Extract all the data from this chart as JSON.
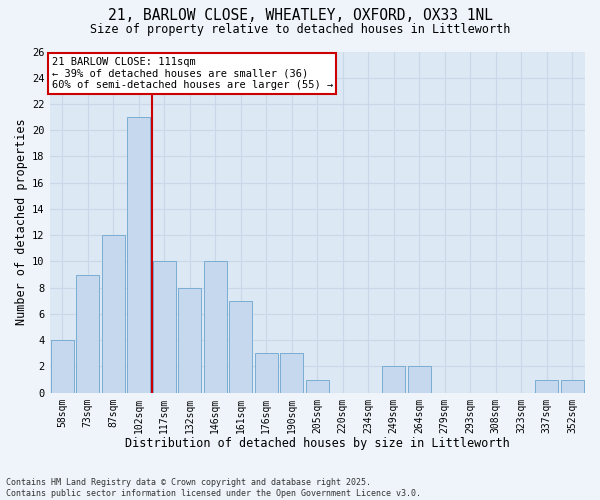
{
  "title_line1": "21, BARLOW CLOSE, WHEATLEY, OXFORD, OX33 1NL",
  "title_line2": "Size of property relative to detached houses in Littleworth",
  "xlabel": "Distribution of detached houses by size in Littleworth",
  "ylabel": "Number of detached properties",
  "categories": [
    "58sqm",
    "73sqm",
    "87sqm",
    "102sqm",
    "117sqm",
    "132sqm",
    "146sqm",
    "161sqm",
    "176sqm",
    "190sqm",
    "205sqm",
    "220sqm",
    "234sqm",
    "249sqm",
    "264sqm",
    "279sqm",
    "293sqm",
    "308sqm",
    "323sqm",
    "337sqm",
    "352sqm"
  ],
  "values": [
    4,
    9,
    12,
    21,
    10,
    8,
    10,
    7,
    3,
    3,
    1,
    0,
    0,
    2,
    2,
    0,
    0,
    0,
    0,
    1,
    1
  ],
  "bar_color": "#c5d8ed",
  "bar_edge_color": "#7aadd4",
  "reference_line_color": "#cc0000",
  "reference_line_x": 3.5,
  "annotation_text": "21 BARLOW CLOSE: 111sqm\n← 39% of detached houses are smaller (36)\n60% of semi-detached houses are larger (55) →",
  "annotation_box_color": "#ffffff",
  "annotation_box_edge_color": "#cc0000",
  "ylim": [
    0,
    26
  ],
  "yticks": [
    0,
    2,
    4,
    6,
    8,
    10,
    12,
    14,
    16,
    18,
    20,
    22,
    24,
    26
  ],
  "grid_color": "#c8d8e8",
  "plot_bg_color": "#dce8f4",
  "fig_bg_color": "#eef4fa",
  "footer_line1": "Contains HM Land Registry data © Crown copyright and database right 2025.",
  "footer_line2": "Contains public sector information licensed under the Open Government Licence v3.0."
}
